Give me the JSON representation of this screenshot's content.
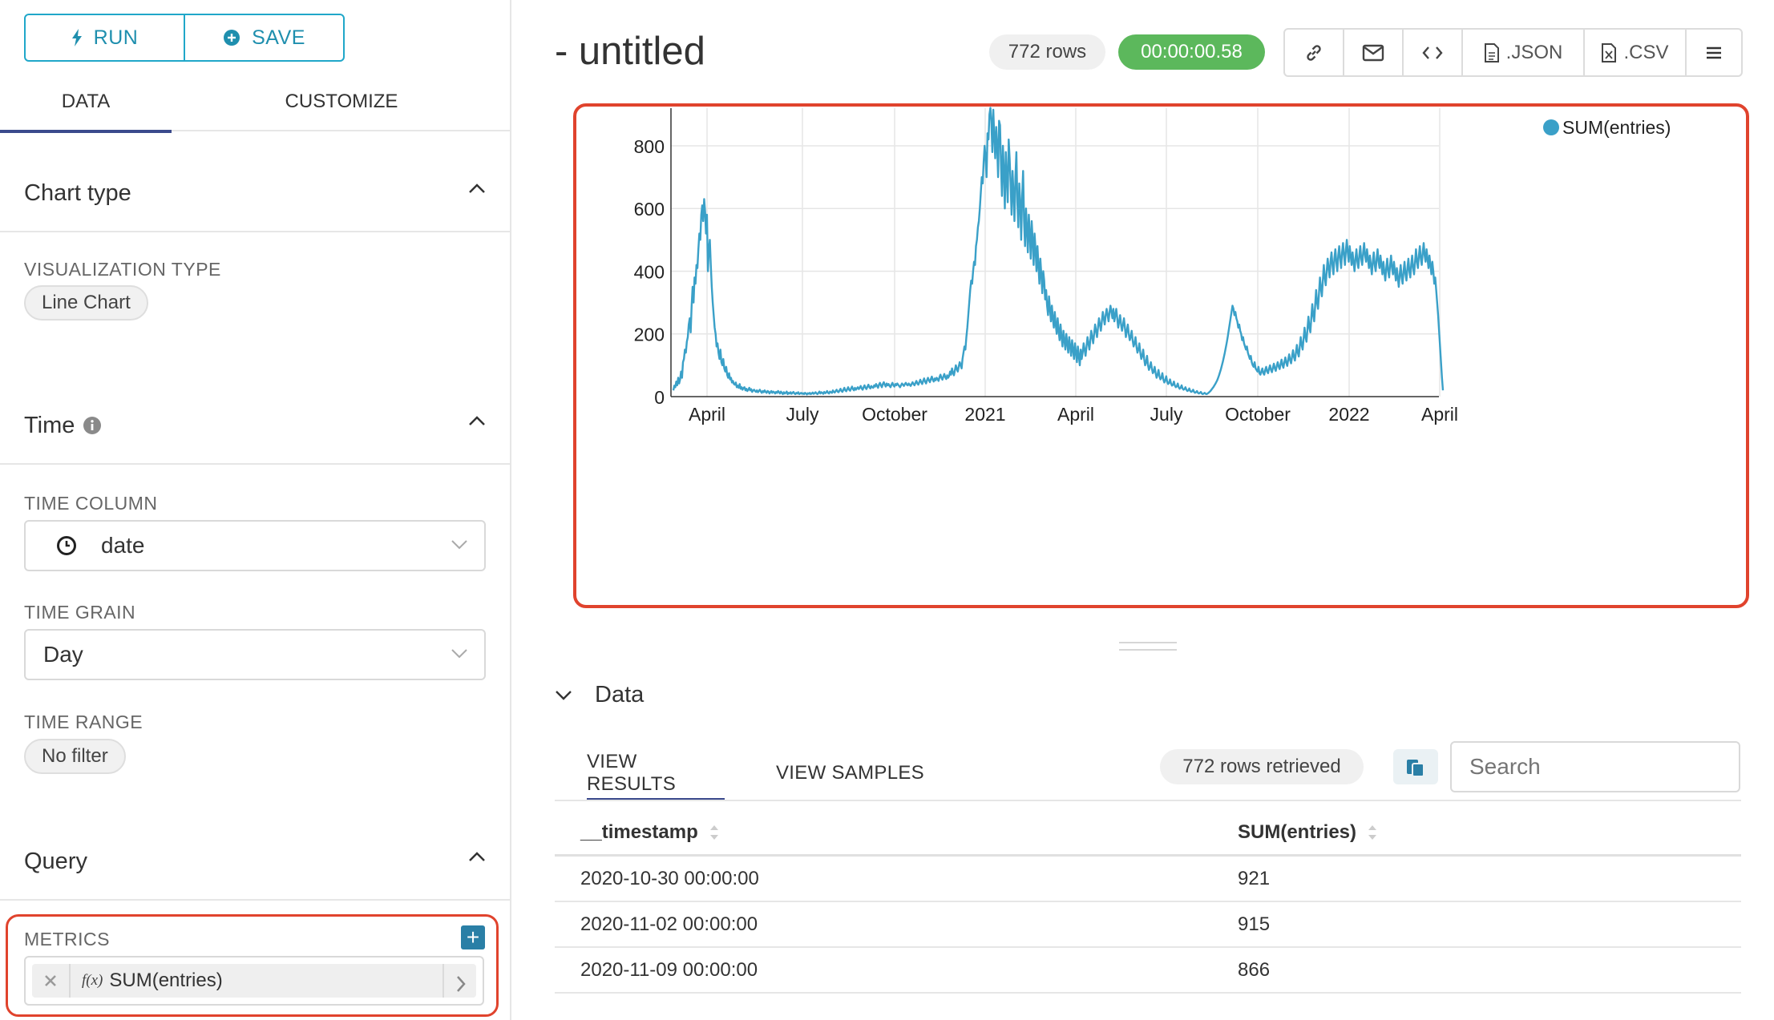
{
  "toolbar_left": {
    "run_label": "RUN",
    "save_label": "SAVE"
  },
  "left_tabs": [
    {
      "label": "DATA",
      "active": true
    },
    {
      "label": "CUSTOMIZE",
      "active": false
    }
  ],
  "chart_type_section": {
    "title": "Chart type",
    "viz_type_label": "VISUALIZATION TYPE",
    "viz_type_value": "Line Chart"
  },
  "time_section": {
    "title": "Time",
    "time_column_label": "TIME COLUMN",
    "time_column_value": "date",
    "time_grain_label": "TIME GRAIN",
    "time_grain_value": "Day",
    "time_range_label": "TIME RANGE",
    "time_range_value": "No filter"
  },
  "query_section": {
    "title": "Query",
    "metrics_label": "METRICS",
    "metric_fx": "f(x)",
    "metric_value": "SUM(entries)"
  },
  "header": {
    "title": "- untitled",
    "rows_badge": "772 rows",
    "timer": "00:00:00.58",
    "json_label": ".JSON",
    "csv_label": ".CSV",
    "accent": "#5cb85c"
  },
  "chart_data": {
    "type": "line",
    "legend": "top-right",
    "grid": true,
    "series": [
      {
        "name": "SUM(entries)",
        "color": "#3aa0c8"
      }
    ],
    "x_ticks": [
      "April",
      "July",
      "October",
      "2021",
      "April",
      "July",
      "October",
      "2022",
      "April"
    ],
    "x_range": [
      "2020-03-03",
      "2022-04-13"
    ],
    "y_ticks": [
      "0",
      "200",
      "400",
      "600",
      "800"
    ],
    "ylim": [
      0,
      920
    ],
    "y_values": [
      20,
      35,
      30,
      48,
      36,
      60,
      42,
      55,
      80,
      60,
      110,
      120,
      150,
      140,
      175,
      190,
      230,
      250,
      205,
      290,
      350,
      300,
      380,
      360,
      420,
      410,
      470,
      520,
      500,
      580,
      610,
      560,
      630,
      590,
      520,
      580,
      400,
      470,
      500,
      420,
      350,
      300,
      260,
      220,
      200,
      160,
      170,
      140,
      120,
      150,
      110,
      100,
      120,
      90,
      80,
      95,
      70,
      60,
      75,
      55,
      60,
      45,
      50,
      40,
      38,
      45,
      30,
      35,
      28,
      40,
      25,
      30,
      22,
      28,
      30,
      20,
      25,
      18,
      22,
      28,
      20,
      24,
      15,
      20,
      22,
      18,
      15,
      20,
      14,
      18,
      22,
      16,
      12,
      18,
      14,
      20,
      15,
      12,
      18,
      16,
      10,
      14,
      18,
      12,
      16,
      14,
      10,
      15,
      12,
      18,
      14,
      10,
      16,
      12,
      8,
      14,
      10,
      12,
      16,
      8,
      12,
      10,
      14,
      9,
      12,
      15,
      10,
      8,
      12,
      10,
      14,
      8,
      10,
      12,
      9,
      11,
      8,
      12,
      10,
      7,
      11,
      9,
      12,
      8,
      10,
      13,
      9,
      11,
      14,
      10,
      8,
      12,
      16,
      10,
      14,
      12,
      9,
      15,
      11,
      13,
      18,
      12,
      10,
      16,
      14,
      12,
      20,
      15,
      13,
      18,
      22,
      16,
      14,
      20,
      25,
      18,
      15,
      22,
      28,
      20,
      17,
      24,
      30,
      22,
      19,
      26,
      32,
      24,
      20,
      28,
      22,
      26,
      30,
      24,
      28,
      34,
      26,
      22,
      30,
      36,
      28,
      24,
      32,
      38,
      30,
      26,
      34,
      30,
      28,
      36,
      32,
      40,
      34,
      28,
      38,
      44,
      36,
      30,
      40,
      46,
      38,
      32,
      42,
      36,
      40,
      34,
      30,
      38,
      44,
      36,
      32,
      40,
      36,
      42,
      38,
      34,
      30,
      36,
      42,
      38,
      34,
      40,
      44,
      38,
      36,
      42,
      38,
      34,
      40,
      46,
      40,
      36,
      44,
      50,
      42,
      38,
      46,
      54,
      46,
      40,
      50,
      58,
      48,
      42,
      52,
      60,
      52,
      46,
      56,
      64,
      54,
      48,
      58,
      52,
      60,
      56,
      50,
      62,
      70,
      60,
      54,
      64,
      72,
      62,
      56,
      68,
      60,
      66,
      80,
      70,
      90,
      76,
      68,
      84,
      100,
      88,
      80,
      96,
      110,
      100,
      90,
      120,
      140,
      160,
      150,
      190,
      220,
      260,
      300,
      340,
      370,
      360,
      400,
      430,
      420,
      480,
      500,
      540,
      560,
      600,
      650,
      700,
      680,
      750,
      800,
      760,
      700,
      840,
      820,
      900,
      921,
      880,
      780,
      915,
      830,
      760,
      860,
      800,
      700,
      880,
      866,
      740,
      640,
      800,
      720,
      600,
      780,
      700,
      620,
      820,
      760,
      680,
      580,
      720,
      650,
      560,
      700,
      780,
      620,
      540,
      680,
      620,
      500,
      640,
      720,
      560,
      480,
      600,
      540,
      460,
      580,
      520,
      440,
      560,
      500,
      420,
      520,
      470,
      400,
      480,
      420,
      360,
      440,
      390,
      330,
      400,
      370,
      310,
      340,
      290,
      260,
      320,
      280,
      240,
      290,
      250,
      220,
      270,
      230,
      200,
      250,
      210,
      180,
      230,
      190,
      160,
      210,
      180,
      150,
      200,
      170,
      140,
      190,
      160,
      130,
      180,
      150,
      120,
      170,
      140,
      110,
      160,
      130,
      100,
      150,
      120,
      140,
      170,
      150,
      130,
      160,
      190,
      170,
      150,
      180,
      210,
      190,
      170,
      200,
      230,
      210,
      190,
      220,
      250,
      230,
      210,
      240,
      270,
      250,
      230,
      260,
      280,
      260,
      240,
      270,
      290,
      270,
      250,
      280,
      240,
      260,
      280,
      250,
      220,
      240,
      260,
      230,
      210,
      230,
      250,
      220,
      190,
      210,
      230,
      200,
      180,
      190,
      210,
      180,
      160,
      170,
      190,
      160,
      140,
      150,
      170,
      140,
      120,
      130,
      150,
      120,
      100,
      110,
      130,
      100,
      85,
      95,
      110,
      90,
      75,
      80,
      95,
      75,
      60,
      70,
      85,
      65,
      55,
      60,
      75,
      55,
      45,
      52,
      65,
      48,
      40,
      44,
      55,
      42,
      35,
      38,
      48,
      35,
      30,
      33,
      42,
      30,
      25,
      28,
      36,
      26,
      22,
      24,
      30,
      22,
      18,
      20,
      26,
      18,
      15,
      17,
      22,
      15,
      12,
      14,
      18,
      12,
      10,
      12,
      15,
      10,
      8,
      10,
      12,
      9,
      8,
      10,
      12,
      15,
      18,
      22,
      26,
      30,
      35,
      40,
      46,
      52,
      60,
      68,
      78,
      88,
      100,
      112,
      126,
      140,
      156,
      172,
      190,
      210,
      230,
      250,
      270,
      290,
      280,
      260,
      270,
      250,
      240,
      220,
      230,
      210,
      200,
      180,
      190,
      170,
      160,
      150,
      160,
      140,
      130,
      120,
      130,
      110,
      100,
      95,
      110,
      90,
      85,
      80,
      95,
      75,
      70,
      80,
      90,
      75,
      70,
      85,
      95,
      80,
      75,
      90,
      100,
      85,
      78,
      92,
      105,
      90,
      82,
      98,
      110,
      96,
      88,
      104,
      118,
      100,
      92,
      110,
      125,
      108,
      98,
      118,
      135,
      116,
      106,
      128,
      148,
      126,
      115,
      140,
      165,
      140,
      128,
      160,
      190,
      165,
      150,
      185,
      220,
      190,
      175,
      215,
      255,
      220,
      205,
      250,
      295,
      260,
      240,
      290,
      340,
      300,
      280,
      330,
      380,
      345,
      320,
      370,
      420,
      380,
      355,
      400,
      440,
      410,
      380,
      430,
      460,
      420,
      390,
      440,
      470,
      430,
      400,
      450,
      480,
      440,
      410,
      460,
      490,
      450,
      420,
      470,
      500,
      460,
      430,
      480,
      450,
      420,
      460,
      430,
      400,
      440,
      470,
      430,
      410,
      450,
      480,
      440,
      420,
      460,
      490,
      450,
      430,
      470,
      440,
      410,
      450,
      420,
      390,
      430,
      460,
      420,
      400,
      440,
      470,
      430,
      410,
      450,
      420,
      390,
      430,
      400,
      370,
      410,
      440,
      400,
      380,
      420,
      450,
      410,
      390,
      430,
      400,
      370,
      410,
      380,
      350,
      390,
      420,
      380,
      360,
      400,
      430,
      390,
      370,
      410,
      440,
      400,
      380,
      420,
      450,
      410,
      390,
      430,
      470,
      430,
      410,
      450,
      480,
      440,
      420,
      460,
      490,
      450,
      430,
      470,
      440,
      410,
      450,
      420,
      390,
      430,
      400,
      360,
      380,
      340,
      300,
      260,
      210,
      160,
      110,
      60,
      20
    ]
  },
  "data_section": {
    "title": "Data",
    "tabs": [
      {
        "label": "VIEW RESULTS",
        "active": true
      },
      {
        "label": "VIEW SAMPLES",
        "active": false
      }
    ],
    "rows_retrieved": "772 rows retrieved",
    "search_placeholder": "Search",
    "columns": [
      "__timestamp",
      "SUM(entries)"
    ],
    "rows": [
      [
        "2020-10-30 00:00:00",
        "921"
      ],
      [
        "2020-11-02 00:00:00",
        "915"
      ],
      [
        "2020-11-09 00:00:00",
        "866"
      ]
    ]
  }
}
